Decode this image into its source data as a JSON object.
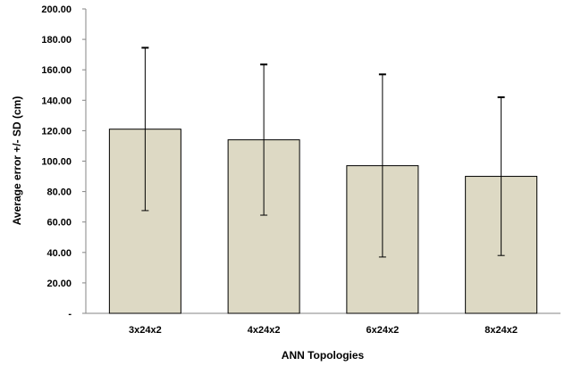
{
  "chart_data": {
    "type": "bar",
    "categories": [
      "3x24x2",
      "4x24x2",
      "6x24x2",
      "8x24x2"
    ],
    "values": [
      121,
      114,
      97,
      90
    ],
    "error_sd": [
      53.5,
      49.5,
      60,
      52
    ],
    "y_tick_labels": [
      "-",
      "20.00",
      "40.00",
      "60.00",
      "80.00",
      "100.00",
      "120.00",
      "140.00",
      "160.00",
      "180.00",
      "200.00"
    ],
    "y_ticks": [
      0,
      20,
      40,
      60,
      80,
      100,
      120,
      140,
      160,
      180,
      200
    ],
    "xlabel": "ANN Topologies",
    "ylabel": "Average error +/- SD (cm)",
    "ylim": [
      0,
      200
    ],
    "grid": false,
    "bar_fill": "#ddd9c4",
    "bar_stroke": "#000000"
  }
}
